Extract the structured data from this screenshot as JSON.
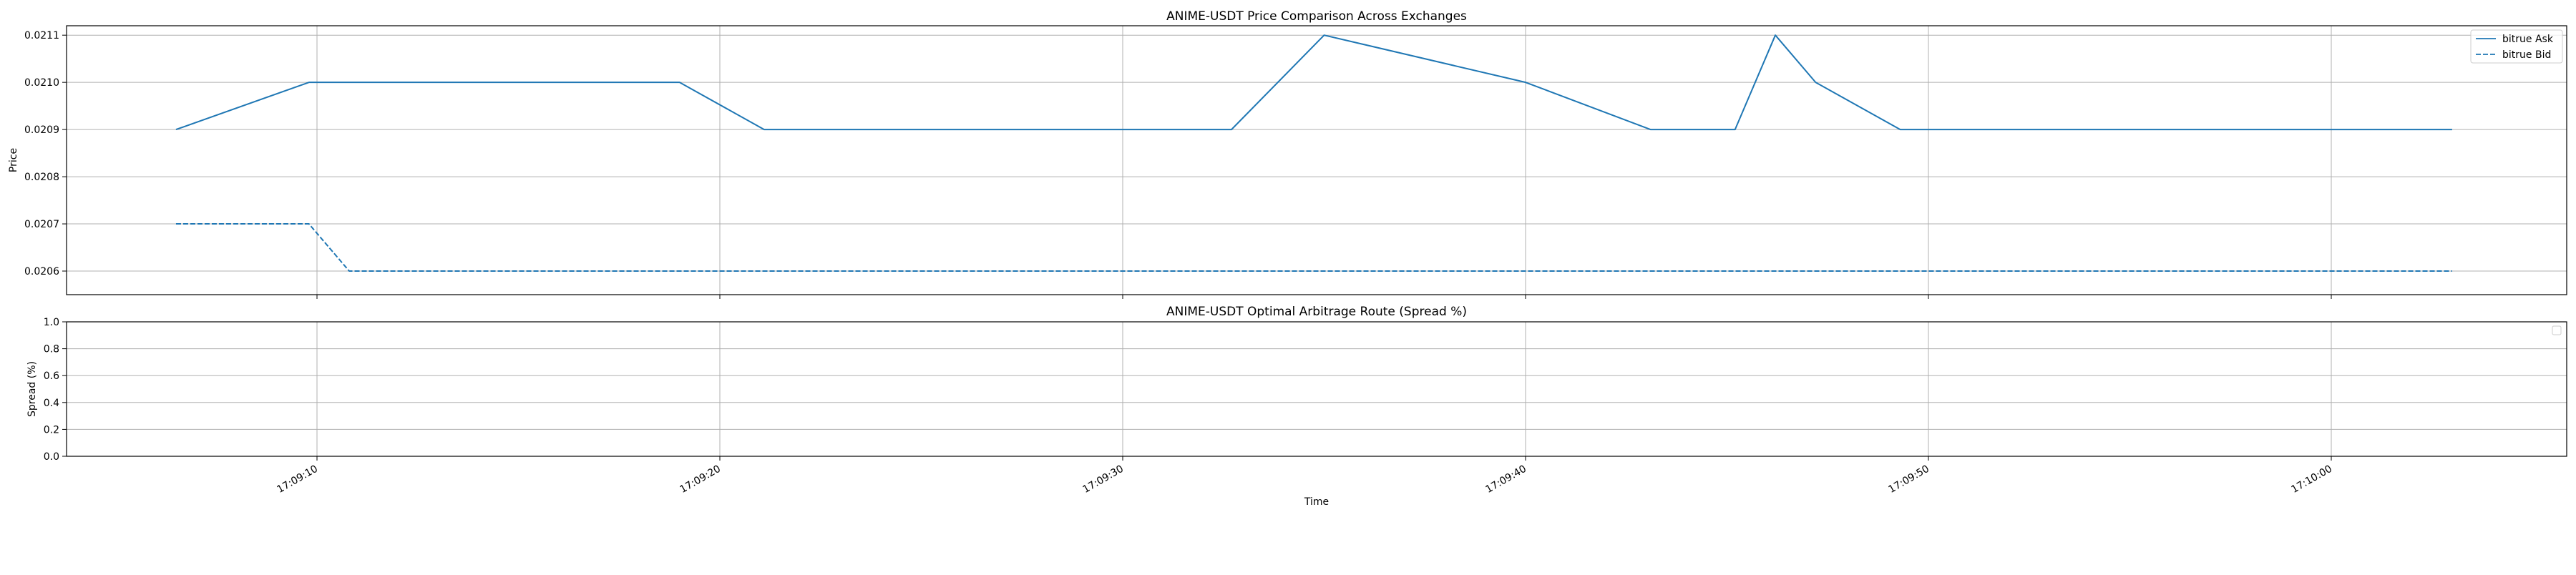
{
  "chart_data": [
    {
      "type": "line",
      "title": "ANIME-USDT Price Comparison Across Exchanges",
      "xlabel": "",
      "ylabel": "Price",
      "ylim": [
        0.02055,
        0.02112
      ],
      "yticks": [
        "0.0206",
        "0.0207",
        "0.0208",
        "0.0209",
        "0.0210",
        "0.0211"
      ],
      "grid": true,
      "legend": "top-right",
      "series": [
        {
          "name": "bitrue Ask",
          "style": "solid",
          "color": "#1f77b4",
          "x": [
            "17:09:06.5",
            "17:09:09.8",
            "17:09:19.0",
            "17:09:21.1",
            "17:09:32.7",
            "17:09:35.0",
            "17:09:40.0",
            "17:09:43.1",
            "17:09:45.2",
            "17:09:46.2",
            "17:09:47.2",
            "17:09:49.3",
            "17:10:03.0"
          ],
          "values": [
            0.0209,
            0.021,
            0.021,
            0.0209,
            0.0209,
            0.0211,
            0.021,
            0.0209,
            0.0209,
            0.0211,
            0.021,
            0.0209,
            0.0209
          ]
        },
        {
          "name": "bitrue Bid",
          "style": "dashed",
          "color": "#1f77b4",
          "x": [
            "17:09:06.5",
            "17:09:09.8",
            "17:09:10.8",
            "17:10:03.0"
          ],
          "values": [
            0.0207,
            0.0207,
            0.0206,
            0.0206
          ]
        }
      ]
    },
    {
      "type": "line",
      "title": "ANIME-USDT Optimal Arbitrage Route (Spread %)",
      "xlabel": "Time",
      "ylabel": "Spread (%)",
      "ylim": [
        0.0,
        1.0
      ],
      "yticks": [
        "0.0",
        "0.2",
        "0.4",
        "0.6",
        "0.8",
        "1.0"
      ],
      "xticks": [
        "17:09:10",
        "17:09:20",
        "17:09:30",
        "17:09:40",
        "17:09:50",
        "17:10:00"
      ],
      "grid": true,
      "legend": "top-right",
      "series": []
    }
  ],
  "colors": {
    "series": "#1f77b4",
    "grid": "#b0b0b0",
    "axes": "#000000"
  }
}
